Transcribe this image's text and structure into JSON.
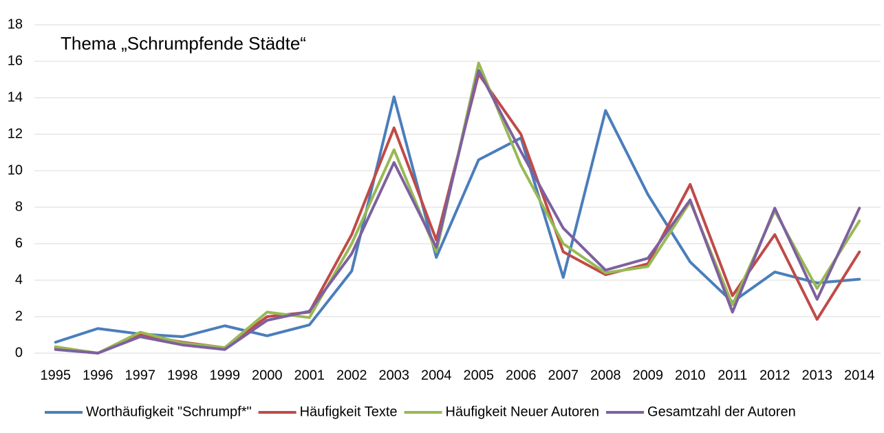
{
  "chart_data": {
    "type": "line",
    "title": "Thema „Schrumpfende Städte“",
    "categories": [
      "1995",
      "1996",
      "1997",
      "1998",
      "1999",
      "2000",
      "2001",
      "2002",
      "2003",
      "2004",
      "2005",
      "2006",
      "2007",
      "2008",
      "2009",
      "2010",
      "2011",
      "2012",
      "2013",
      "2014"
    ],
    "series": [
      {
        "name": "Worthäufigkeit \"Schrumpf*\"",
        "color": "#4a7ebb",
        "values": [
          0.6,
          1.35,
          1.05,
          0.9,
          1.5,
          0.95,
          1.55,
          4.5,
          14.05,
          5.25,
          10.6,
          11.8,
          4.15,
          13.3,
          8.7,
          5.0,
          2.8,
          4.45,
          3.85,
          4.05
        ]
      },
      {
        "name": "Häufigkeit Texte",
        "color": "#be4b48",
        "values": [
          0.3,
          0,
          1.0,
          0.6,
          0.3,
          2.0,
          2.25,
          6.5,
          12.35,
          6.2,
          15.3,
          12.0,
          5.55,
          4.3,
          4.9,
          9.25,
          3.15,
          6.5,
          1.85,
          5.55
        ]
      },
      {
        "name": "Häufigkeit Neuer Autoren",
        "color": "#98b954",
        "values": [
          0.35,
          0,
          1.15,
          0.55,
          0.3,
          2.25,
          1.95,
          6.0,
          11.15,
          5.55,
          15.9,
          10.3,
          6.0,
          4.4,
          4.75,
          8.3,
          2.65,
          7.8,
          3.55,
          7.25
        ]
      },
      {
        "name": "Gesamtzahl der Autoren",
        "color": "#7d60a0",
        "values": [
          0.2,
          0,
          0.9,
          0.45,
          0.2,
          1.8,
          2.3,
          5.45,
          10.45,
          5.8,
          15.5,
          11.05,
          6.85,
          4.55,
          5.2,
          8.4,
          2.25,
          7.95,
          2.95,
          7.95
        ]
      }
    ],
    "ylim": [
      0,
      18
    ],
    "yticks": [
      0,
      2,
      4,
      6,
      8,
      10,
      12,
      14,
      16,
      18
    ],
    "grid": true,
    "legend": "bottom"
  }
}
